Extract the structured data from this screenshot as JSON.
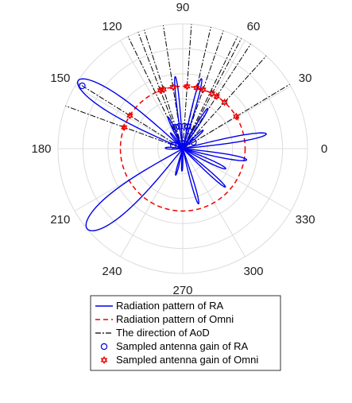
{
  "chart_data": {
    "type": "polar",
    "title": "",
    "grid": true,
    "theta_ticks": [
      {
        "angle": 0,
        "label": "0"
      },
      {
        "angle": 30,
        "label": "30"
      },
      {
        "angle": 60,
        "label": "60"
      },
      {
        "angle": 90,
        "label": "90"
      },
      {
        "angle": 120,
        "label": "120"
      },
      {
        "angle": 150,
        "label": "150"
      },
      {
        "angle": 180,
        "label": "180"
      },
      {
        "angle": 210,
        "label": "210"
      },
      {
        "angle": 240,
        "label": "240"
      },
      {
        "angle": 270,
        "label": "270"
      },
      {
        "angle": 300,
        "label": "300"
      },
      {
        "angle": 330,
        "label": "330"
      }
    ],
    "radial_grid": [
      0.2,
      0.4,
      0.6,
      0.8,
      1.0
    ],
    "colors": {
      "ra": "#0000ee",
      "omni": "#ee0000",
      "aod": "#000000",
      "grid": "#dcdcdc"
    },
    "legend_placement": "bottom",
    "series": [
      {
        "name": "Radiation pattern of RA",
        "kind": "lobes",
        "lobes": [
          {
            "dir": 147,
            "r": 1.0,
            "hw": 9
          },
          {
            "dir": 220,
            "r": 1.0,
            "hw": 11
          },
          {
            "dir": 10,
            "r": 0.68,
            "hw": 4
          },
          {
            "dir": 350,
            "r": 0.52,
            "hw": 4
          },
          {
            "dir": 335,
            "r": 0.38,
            "hw": 4
          },
          {
            "dir": 318,
            "r": 0.46,
            "hw": 3
          },
          {
            "dir": 286,
            "r": 0.46,
            "hw": 3
          },
          {
            "dir": 96,
            "r": 0.58,
            "hw": 2.5
          },
          {
            "dir": 75,
            "r": 0.58,
            "hw": 3
          },
          {
            "dir": 58,
            "r": 0.38,
            "hw": 3
          },
          {
            "dir": 42,
            "r": 0.22,
            "hw": 4
          },
          {
            "dir": 115,
            "r": 0.28,
            "hw": 3
          },
          {
            "dir": 128,
            "r": 0.16,
            "hw": 4
          },
          {
            "dir": 178,
            "r": 0.14,
            "hw": 6
          },
          {
            "dir": 255,
            "r": 0.22,
            "hw": 3
          },
          {
            "dir": 268,
            "r": 0.18,
            "hw": 3
          }
        ]
      },
      {
        "name": "Radiation pattern of Omni",
        "kind": "circle",
        "r": 0.5
      },
      {
        "name": "The direction of AoD",
        "kind": "rays",
        "angles": [
          31,
          48,
          57,
          62,
          64,
          71,
          77,
          86,
          99,
          108,
          111,
          116,
          148,
          160
        ]
      },
      {
        "name": "Sampled antenna gain of RA",
        "kind": "markers",
        "marker": "circle",
        "points": [
          {
            "angle": 148,
            "r": 0.95
          },
          {
            "angle": 77,
            "r": 0.18
          },
          {
            "angle": 86,
            "r": 0.18
          },
          {
            "angle": 99,
            "r": 0.18
          },
          {
            "angle": 108,
            "r": 0.18
          },
          {
            "angle": 71,
            "r": 0.15
          },
          {
            "angle": 160,
            "r": 0.08
          },
          {
            "angle": 31,
            "r": 0.1
          }
        ]
      },
      {
        "name": "Sampled antenna gain of Omni",
        "kind": "markers",
        "marker": "hexagram",
        "points": [
          {
            "angle": 31,
            "r": 0.5
          },
          {
            "angle": 48,
            "r": 0.5
          },
          {
            "angle": 57,
            "r": 0.5
          },
          {
            "angle": 62,
            "r": 0.5
          },
          {
            "angle": 71,
            "r": 0.5
          },
          {
            "angle": 77,
            "r": 0.5
          },
          {
            "angle": 86,
            "r": 0.5
          },
          {
            "angle": 99,
            "r": 0.5
          },
          {
            "angle": 108,
            "r": 0.5
          },
          {
            "angle": 111,
            "r": 0.5
          },
          {
            "angle": 148,
            "r": 0.5
          },
          {
            "angle": 160,
            "r": 0.5
          }
        ]
      }
    ]
  }
}
